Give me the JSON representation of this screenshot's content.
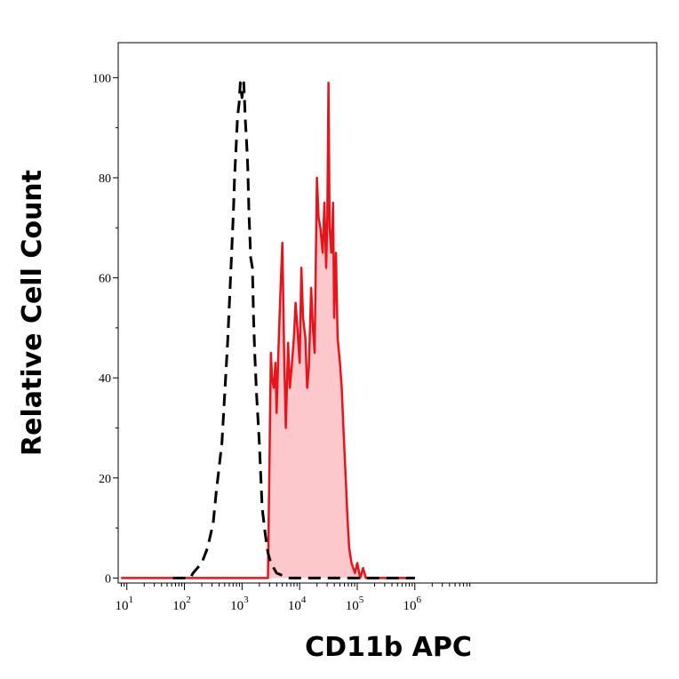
{
  "chart_data": {
    "type": "area",
    "xlabel": "CD11b APC",
    "ylabel": "Relative Cell Count",
    "x_scale": "log10",
    "xlim": [
      0.85,
      10.2
    ],
    "ylim": [
      -1,
      107
    ],
    "y_ticks": [
      "0",
      "20",
      "40",
      "60",
      "80",
      "100"
    ],
    "y_tick_values": [
      0,
      20,
      40,
      60,
      80,
      100
    ],
    "x_ticks": [
      {
        "base": "10",
        "exp": "1"
      },
      {
        "base": "10",
        "exp": "2"
      },
      {
        "base": "10",
        "exp": "3"
      },
      {
        "base": "10",
        "exp": "4"
      },
      {
        "base": "10",
        "exp": "5"
      },
      {
        "base": "10",
        "exp": "6"
      }
    ],
    "x_tick_values": [
      1,
      2,
      3,
      4,
      5,
      6
    ],
    "grid": false,
    "legend": "none",
    "colors": {
      "stained_line": "#e8141c",
      "stained_fill": "#fcc8cc",
      "control_line": "#000000"
    },
    "series": [
      {
        "style": "dashed-black-outline",
        "x": [
          1.8,
          2.1,
          2.15,
          2.3,
          2.4,
          2.5,
          2.55,
          2.65,
          2.7,
          2.75,
          2.8,
          2.85,
          2.87,
          2.9,
          2.92,
          2.95,
          2.97,
          3.0,
          3.03,
          3.06,
          3.08,
          3.1,
          3.12,
          3.15,
          3.18,
          3.2,
          3.22,
          3.25,
          3.3,
          3.35,
          3.4,
          3.45,
          3.5,
          3.6,
          3.8,
          4.2,
          4.7,
          5.2,
          5.6,
          5.9,
          6.0
        ],
        "y": [
          0,
          0,
          1,
          3,
          6,
          11,
          17,
          27,
          37,
          47,
          60,
          73,
          80,
          87,
          92,
          95,
          99,
          96,
          99,
          91,
          87,
          82,
          73,
          64,
          62,
          52,
          45,
          37,
          27,
          14,
          9,
          5,
          3,
          1,
          0,
          0,
          0,
          0,
          0,
          0,
          0
        ]
      },
      {
        "style": "red-filled",
        "x": [
          0.9,
          3.2,
          3.45,
          3.5,
          3.52,
          3.55,
          3.58,
          3.6,
          3.63,
          3.66,
          3.7,
          3.73,
          3.76,
          3.8,
          3.83,
          3.86,
          3.9,
          3.93,
          3.96,
          4.0,
          4.03,
          4.06,
          4.1,
          4.13,
          4.16,
          4.2,
          4.23,
          4.26,
          4.3,
          4.33,
          4.36,
          4.4,
          4.43,
          4.46,
          4.48,
          4.5,
          4.52,
          4.55,
          4.58,
          4.6,
          4.63,
          4.66,
          4.7,
          4.73,
          4.76,
          4.8,
          4.83,
          4.86,
          4.9,
          4.93,
          4.96,
          5.0,
          5.05,
          5.1,
          5.15,
          5.2,
          5.3,
          5.5,
          6.0
        ],
        "y": [
          0,
          0,
          0,
          45,
          40,
          38,
          43,
          33,
          45,
          55,
          67,
          45,
          30,
          47,
          38,
          42,
          48,
          55,
          50,
          43,
          62,
          52,
          48,
          38,
          42,
          58,
          50,
          45,
          80,
          72,
          70,
          65,
          75,
          62,
          72,
          99,
          70,
          65,
          75,
          52,
          65,
          48,
          43,
          38,
          30,
          20,
          12,
          6,
          3,
          2,
          1,
          3,
          0,
          2,
          0,
          0,
          0,
          0,
          0
        ]
      }
    ]
  }
}
